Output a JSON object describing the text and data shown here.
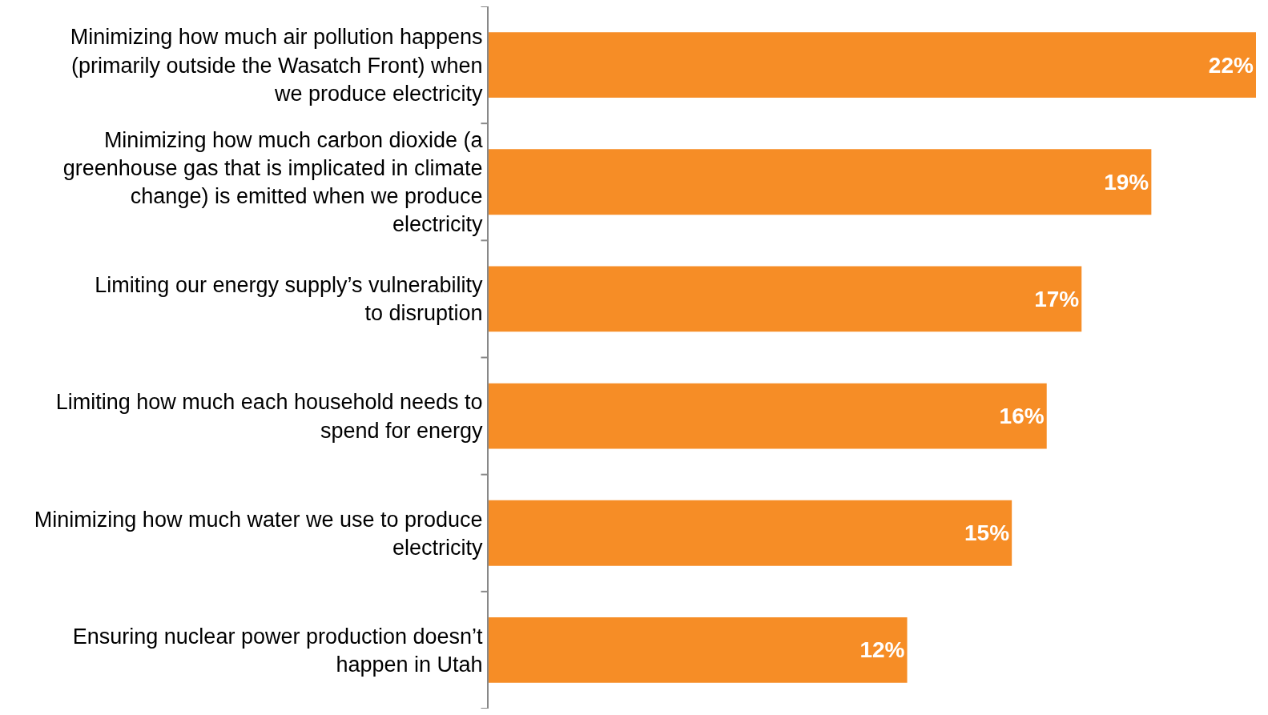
{
  "chart_data": {
    "type": "bar",
    "orientation": "horizontal",
    "categories": [
      "Minimizing how much air pollution happens (primarily outside the Wasatch Front) when we produce electricity",
      "Minimizing how much carbon dioxide (a greenhouse gas that is implicated in climate change) is emitted when we produce electricity",
      "Limiting our energy supply’s vulnerability to disruption",
      "Limiting how much each household needs to spend for energy",
      "Minimizing how much water we use to produce electricity",
      "Ensuring nuclear power production doesn’t happen in Utah"
    ],
    "values": [
      22,
      19,
      17,
      16,
      15,
      12
    ],
    "value_labels": [
      "22%",
      "19%",
      "17%",
      "16%",
      "15%",
      "12%"
    ],
    "color": "#f68d26"
  }
}
